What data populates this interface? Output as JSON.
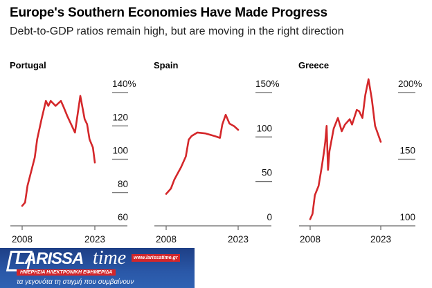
{
  "header": {
    "title": "Europe's Southern Economies Have Made Progress",
    "subtitle": "Debt-to-GDP ratios remain high, but are moving in the right direction"
  },
  "colors": {
    "line": "#d4272a",
    "gridline": "#666666",
    "logo_bg": "#2a58a8",
    "logo_accent": "#d3262a"
  },
  "chart_data": [
    {
      "type": "line",
      "title": "Portugal",
      "xlim": [
        2008,
        2023
      ],
      "x_ticks": [
        "2008",
        "2023"
      ],
      "ylim": [
        60,
        140
      ],
      "y_ticks": [
        {
          "value": 140,
          "label": "140%"
        },
        {
          "value": 120,
          "label": "120"
        },
        {
          "value": 100,
          "label": "100"
        },
        {
          "value": 80,
          "label": "80"
        },
        {
          "value": 60,
          "label": "60"
        }
      ],
      "grid": false,
      "x": [
        2008,
        2008.6,
        2009.1,
        2010.6,
        2011.1,
        2012,
        2012.9,
        2013.4,
        2013.9,
        2014.9,
        2016,
        2016.6,
        2017.3,
        2018.1,
        2018.9,
        2020,
        2020.9,
        2021.4,
        2021.9,
        2022.6,
        2023
      ],
      "y": [
        72,
        74,
        84,
        101,
        112,
        124,
        135,
        132,
        135,
        132,
        135,
        131,
        126,
        121,
        116,
        138,
        124,
        121,
        112,
        107,
        98
      ]
    },
    {
      "type": "line",
      "title": "Spain",
      "xlim": [
        2008,
        2023
      ],
      "x_ticks": [
        "2008",
        "2023"
      ],
      "ylim": [
        0,
        150
      ],
      "y_ticks": [
        {
          "value": 150,
          "label": "150%"
        },
        {
          "value": 100,
          "label": "100"
        },
        {
          "value": 50,
          "label": "50"
        },
        {
          "value": 0,
          "label": "0"
        }
      ],
      "grid": false,
      "x": [
        2008,
        2009,
        2009.7,
        2010.4,
        2011.1,
        2012.1,
        2012.7,
        2013.3,
        2014.5,
        2016.2,
        2018.1,
        2019.2,
        2019.7,
        2020.4,
        2021.2,
        2022.2,
        2023
      ],
      "y": [
        36,
        42,
        52,
        59,
        66,
        78,
        97,
        101,
        105,
        104,
        101,
        99,
        114,
        125,
        115,
        112,
        108
      ]
    },
    {
      "type": "line",
      "title": "Greece",
      "xlim": [
        2008,
        2023
      ],
      "x_ticks": [
        "2008",
        "2023"
      ],
      "ylim": [
        100,
        200
      ],
      "y_ticks": [
        {
          "value": 200,
          "label": "200%"
        },
        {
          "value": 150,
          "label": "150"
        },
        {
          "value": 100,
          "label": "100"
        }
      ],
      "grid": false,
      "x": [
        2008,
        2008.5,
        2009,
        2009.8,
        2010.5,
        2011,
        2011.2,
        2011.5,
        2011.8,
        2012.1,
        2013,
        2013.9,
        2014.7,
        2015.4,
        2016.4,
        2016.9,
        2017.9,
        2018.4,
        2019.1,
        2019.7,
        2020.4,
        2021.1,
        2021.8,
        2023
      ],
      "y": [
        105,
        109,
        123,
        130,
        145,
        157,
        163,
        175,
        142,
        156,
        173,
        181,
        171,
        176,
        180,
        176,
        187,
        186,
        181,
        198,
        210,
        195,
        175,
        163
      ]
    }
  ],
  "logo": {
    "name": "LARISSA",
    "name2": "time",
    "url": "www.larissatime.gr",
    "strip": "ΗΜΕΡΗΣΙΑ ΗΛΕΚΤΡΟΝΙΚΗ ΕΦΗΜΕΡΙΔΑ",
    "tagline": "τα γεγονότα τη στιγμή που συμβαίνουν"
  }
}
